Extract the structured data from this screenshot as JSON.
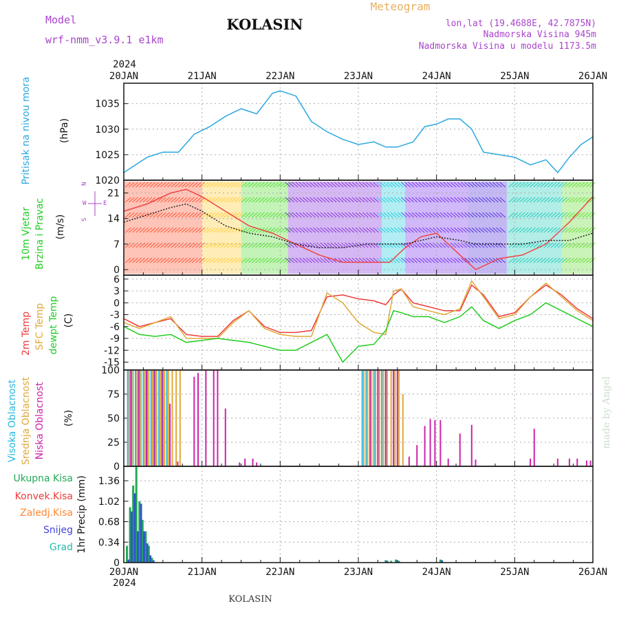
{
  "header": {
    "model_label": "Model",
    "model_name": "wrf-nmm_v3.9.1  e1km",
    "station": "KOLASIN",
    "product": "Meteogram",
    "lonlat": "lon,lat (19.4688E, 42.7875N)",
    "elevation": "Nadmorska Visina 945m",
    "model_elevation": "Nadmorska Visina u modelu 1173.5m",
    "footer_station": "KOLASIN",
    "credit": "made by Angel"
  },
  "colors": {
    "pressure": "#29a8e0",
    "temp2m": "#ee3a3a",
    "sfc": "#e0a838",
    "dewpt": "#22cc22",
    "high_cloud": "#29b8e0",
    "mid_cloud": "#e0a838",
    "low_cloud": "#cc22aa",
    "precip_total": "#22aa55",
    "precip_snow": "#3355cc",
    "header_purple": "#aa44cc",
    "header_orange": "#e8b060"
  },
  "chart_data": [
    {
      "id": "pressure",
      "type": "line",
      "ylabel_left": "Pritisak na nivou mora",
      "ylabel": "(hPa)",
      "ylim": [
        1020,
        1039
      ],
      "yticks": [
        1020,
        1025,
        1030,
        1035
      ],
      "x_day_labels": [
        "20JAN",
        "21JAN",
        "22JAN",
        "23JAN",
        "24JAN",
        "25JAN",
        "26JAN"
      ],
      "x_year": "2024",
      "grid": true,
      "series": [
        {
          "key": "pressure",
          "x": [
            0,
            0.1,
            0.3,
            0.5,
            0.7,
            0.9,
            1.1,
            1.3,
            1.5,
            1.7,
            1.9,
            2.0,
            2.2,
            2.4,
            2.6,
            2.8,
            3.0,
            3.2,
            3.35,
            3.5,
            3.7,
            3.85,
            4.0,
            4.15,
            4.3,
            4.45,
            4.6,
            4.8,
            5.0,
            5.2,
            5.4,
            5.55,
            5.7,
            5.85,
            6.0
          ],
          "y": [
            1021.5,
            1022.5,
            1024.5,
            1025.5,
            1025.5,
            1029,
            1030.5,
            1032.5,
            1034,
            1033,
            1037,
            1037.5,
            1036.5,
            1031.5,
            1029.5,
            1028,
            1027,
            1027.5,
            1026.5,
            1026.5,
            1027.5,
            1030.5,
            1031,
            1032,
            1032,
            1030,
            1025.5,
            1025,
            1024.5,
            1023,
            1024,
            1021.5,
            1024.5,
            1027,
            1028.5
          ]
        }
      ]
    },
    {
      "id": "wind",
      "type": "line",
      "ylabel_left1": "10m Vjetar",
      "ylabel_left2": "Brzina i Pravac",
      "ylabel": "(m/s)",
      "compass": {
        "n": "N",
        "s": "S",
        "e": "E",
        "w": "W"
      },
      "ylim": [
        -1.5,
        24.5
      ],
      "yticks": [
        0,
        7,
        14,
        21
      ],
      "grid": true,
      "series": [
        {
          "key": "gust",
          "x": [
            0,
            0.3,
            0.6,
            0.8,
            1.0,
            1.3,
            1.6,
            1.9,
            2.2,
            2.5,
            2.8,
            3.1,
            3.4,
            3.6,
            3.8,
            4.0,
            4.3,
            4.5,
            4.8,
            5.1,
            5.4,
            5.7,
            6.0
          ],
          "y": [
            16,
            18,
            21,
            22,
            20,
            16,
            12,
            10,
            7,
            4,
            2,
            2,
            2,
            6,
            9,
            10,
            4,
            0,
            3,
            4,
            7,
            13,
            20
          ]
        },
        {
          "key": "speed",
          "x": [
            0,
            0.3,
            0.6,
            0.8,
            1.0,
            1.3,
            1.6,
            1.9,
            2.2,
            2.5,
            2.8,
            3.1,
            3.4,
            3.6,
            3.8,
            4.0,
            4.3,
            4.5,
            4.8,
            5.1,
            5.4,
            5.7,
            6.0
          ],
          "y": [
            13,
            15,
            17,
            18,
            16,
            12,
            10,
            9,
            7,
            6,
            6,
            7,
            7,
            7,
            8,
            9,
            8,
            7,
            7,
            7,
            8,
            8,
            10
          ]
        }
      ]
    },
    {
      "id": "temperature",
      "type": "line",
      "ylabel_left1": "2m Temp",
      "ylabel_left2": "SFC Temp",
      "ylabel_left3": "dewpt Temp",
      "ylabel": "(C)",
      "ylim": [
        -17,
        7
      ],
      "yticks": [
        -15,
        -12,
        -9,
        -6,
        -3,
        0,
        3,
        6
      ],
      "grid": true,
      "series": [
        {
          "key": "temp2m",
          "x": [
            0,
            0.2,
            0.4,
            0.6,
            0.8,
            1.0,
            1.2,
            1.4,
            1.6,
            1.8,
            2.0,
            2.2,
            2.4,
            2.6,
            2.8,
            3.0,
            3.2,
            3.35,
            3.45,
            3.55,
            3.7,
            3.9,
            4.1,
            4.3,
            4.45,
            4.6,
            4.8,
            5.0,
            5.2,
            5.4,
            5.6,
            5.8,
            6.0
          ],
          "y": [
            -4,
            -6,
            -5,
            -4,
            -8,
            -8.5,
            -8.5,
            -4.5,
            -2,
            -6,
            -7.5,
            -7.5,
            -7,
            1.5,
            2,
            1,
            0.5,
            -0.5,
            2,
            3.5,
            0,
            -1,
            -2,
            -2,
            4.5,
            2,
            -3.5,
            -2.5,
            1.5,
            4.5,
            2,
            -1.5,
            -4
          ]
        },
        {
          "key": "sfc",
          "x": [
            0,
            0.2,
            0.4,
            0.6,
            0.8,
            1.0,
            1.2,
            1.4,
            1.6,
            1.8,
            2.0,
            2.2,
            2.4,
            2.6,
            2.8,
            3.0,
            3.2,
            3.35,
            3.45,
            3.55,
            3.7,
            3.9,
            4.1,
            4.3,
            4.45,
            4.6,
            4.8,
            5.0,
            5.2,
            5.4,
            5.6,
            5.8,
            6.0
          ],
          "y": [
            -5,
            -6.5,
            -5,
            -3.5,
            -9,
            -9,
            -9,
            -5,
            -2,
            -6.5,
            -8,
            -8.5,
            -8.5,
            2.5,
            0,
            -5,
            -7.5,
            -8,
            3,
            3.5,
            -1,
            -2,
            -3,
            -1.5,
            5.5,
            1.5,
            -4,
            -3,
            1.5,
            5,
            1.5,
            -2,
            -4.5
          ]
        },
        {
          "key": "dewpt",
          "x": [
            0,
            0.2,
            0.4,
            0.6,
            0.8,
            1.0,
            1.2,
            1.4,
            1.6,
            1.8,
            2.0,
            2.2,
            2.4,
            2.6,
            2.8,
            3.0,
            3.2,
            3.35,
            3.45,
            3.55,
            3.7,
            3.9,
            4.1,
            4.3,
            4.45,
            4.6,
            4.8,
            5.0,
            5.2,
            5.4,
            5.6,
            5.8,
            6.0
          ],
          "y": [
            -6,
            -8,
            -8.5,
            -8,
            -10,
            -9.5,
            -9,
            -9.5,
            -10,
            -11,
            -12,
            -12,
            -10,
            -8,
            -15,
            -11,
            -10.5,
            -7,
            -2,
            -2.5,
            -3.5,
            -3.5,
            -5,
            -3.5,
            -1,
            -4.5,
            -6.5,
            -4.5,
            -3,
            0,
            -2,
            -4,
            -6
          ]
        }
      ]
    },
    {
      "id": "cloud",
      "type": "bar",
      "ylabel_left1": "Visoka Oblacnost",
      "ylabel_left2": "Srednja Oblacnost",
      "ylabel_left3": "Niska Oblacnost",
      "ylabel": "(%)",
      "ylim": [
        0,
        100
      ],
      "yticks": [
        0,
        25,
        50,
        75,
        100
      ],
      "grid": true,
      "series": [
        {
          "key": "high_cloud",
          "x": [
            0.05,
            0.1,
            0.15,
            0.2,
            0.25,
            0.3,
            0.35,
            0.4,
            0.45,
            0.5,
            0.55,
            3.05,
            3.1,
            3.15,
            3.2,
            3.25,
            3.3,
            3.35
          ],
          "y": [
            100,
            100,
            100,
            100,
            100,
            100,
            100,
            100,
            100,
            100,
            100,
            100,
            100,
            100,
            100,
            100,
            100,
            100
          ]
        },
        {
          "key": "mid_cloud",
          "x": [
            0.07,
            0.12,
            0.17,
            0.22,
            0.27,
            0.32,
            0.37,
            0.42,
            0.47,
            0.52,
            0.57,
            0.62,
            0.67,
            0.72,
            3.07,
            3.12,
            3.17,
            3.22,
            3.27,
            3.32,
            3.37,
            3.42,
            3.47,
            3.52,
            3.57
          ],
          "y": [
            100,
            100,
            100,
            100,
            100,
            100,
            100,
            100,
            100,
            100,
            100,
            100,
            100,
            100,
            100,
            100,
            100,
            100,
            100,
            100,
            100,
            100,
            100,
            100,
            75
          ]
        },
        {
          "key": "low_cloud",
          "x": [
            0.09,
            0.19,
            0.29,
            0.39,
            0.49,
            0.59,
            0.69,
            0.9,
            0.95,
            1.05,
            1.15,
            1.2,
            1.3,
            1.48,
            1.55,
            1.65,
            1.7,
            3.15,
            3.25,
            3.35,
            3.45,
            3.5,
            3.65,
            3.75,
            3.85,
            3.92,
            3.98,
            4.05,
            4.15,
            4.3,
            4.45,
            4.5,
            5.2,
            5.25,
            5.55,
            5.7,
            5.8,
            5.92,
            5.97
          ],
          "y": [
            100,
            100,
            100,
            100,
            100,
            65,
            5,
            93,
            97,
            100,
            100,
            100,
            60,
            4,
            8,
            8,
            4,
            100,
            100,
            100,
            100,
            100,
            10,
            22,
            42,
            49,
            48,
            48,
            8,
            34,
            43,
            7,
            8,
            39,
            8,
            8,
            8,
            6,
            6
          ]
        }
      ]
    },
    {
      "id": "precip",
      "type": "bar",
      "legend": [
        "Ukupna Kisa",
        "Konvek.Kisa",
        "Zaledj.Kisa",
        "Snijeg",
        "Grad"
      ],
      "ylabel": "1hr Precip (mm)",
      "ylim": [
        0,
        1.6
      ],
      "yticks": [
        0,
        0.34,
        0.68,
        1.02,
        1.36
      ],
      "grid": true,
      "series": [
        {
          "key": "precip_total",
          "x": [
            0.04,
            0.08,
            0.12,
            0.16,
            0.2,
            0.24,
            0.28,
            0.32,
            0.36,
            3.35,
            3.42,
            3.48,
            3.52,
            4.05
          ],
          "y": [
            0.28,
            0.92,
            1.28,
            1.6,
            1.02,
            0.71,
            0.52,
            0.28,
            0.08,
            0.04,
            0.03,
            0.05,
            0.03,
            0.05
          ]
        },
        {
          "key": "precip_snow",
          "x": [
            0.06,
            0.1,
            0.14,
            0.18,
            0.22,
            0.26,
            0.3,
            0.34,
            0.38,
            3.37,
            3.5,
            4.07
          ],
          "y": [
            0.05,
            0.85,
            1.15,
            0.52,
            0.98,
            0.52,
            0.32,
            0.12,
            0.04,
            0.03,
            0.03,
            0.04
          ]
        }
      ]
    }
  ]
}
